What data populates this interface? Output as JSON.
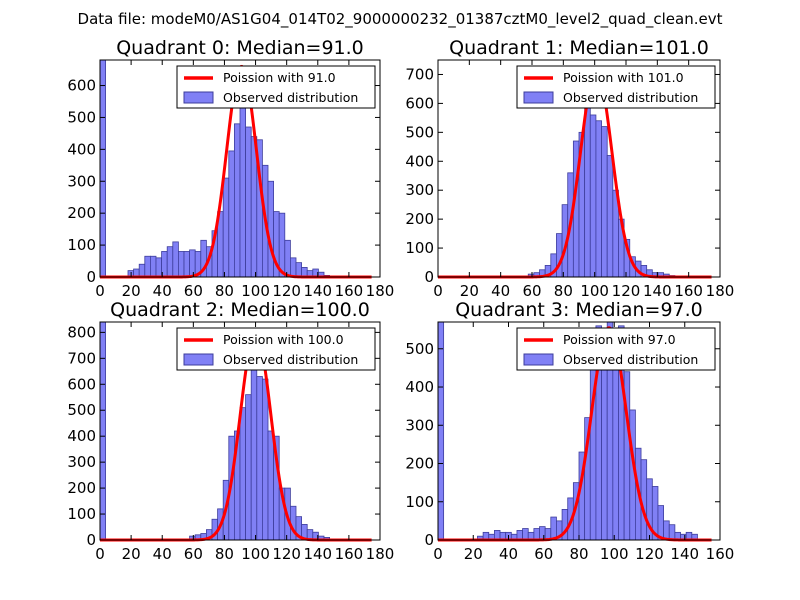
{
  "figure_title": "Data file: modeM0/AS1G04_014T02_9000000232_01387cztM0_level2_quad_clean.evt",
  "colors": {
    "bar_fill": "#8080f5",
    "bar_edge": "#3d3d9c",
    "line": "#ff0000",
    "frame": "#000000",
    "legend_edge": "#000000"
  },
  "chart_data": [
    {
      "type": "bar",
      "title": "Quadrant 0: Median=91.0",
      "legend": [
        "Poission with 91.0",
        "Observed distribution"
      ],
      "legend_position": "top-right",
      "xlim": [
        0,
        180
      ],
      "ylim": [
        0,
        680
      ],
      "xticks": [
        "0",
        "20",
        "40",
        "60",
        "80",
        "100",
        "120",
        "140",
        "160",
        "180"
      ],
      "yticks": [
        "0",
        "100",
        "200",
        "300",
        "400",
        "500",
        "600"
      ],
      "bin_width": 3.6,
      "bins_start": [
        0,
        18,
        21.6,
        25.2,
        28.8,
        32.4,
        36,
        39.6,
        43.2,
        46.8,
        50.4,
        54,
        57.6,
        61.2,
        64.8,
        68.4,
        72,
        75.6,
        79.2,
        82.8,
        86.4,
        90,
        93.6,
        97.2,
        100.8,
        104.4,
        108,
        111.6,
        115.2,
        118.8,
        122.4,
        126,
        129.6,
        133.2,
        136.8,
        140.4,
        144
      ],
      "counts": [
        680,
        20,
        25,
        40,
        65,
        65,
        60,
        80,
        95,
        110,
        80,
        80,
        85,
        80,
        115,
        95,
        145,
        205,
        310,
        395,
        480,
        660,
        470,
        440,
        430,
        350,
        300,
        205,
        200,
        115,
        60,
        45,
        30,
        20,
        25,
        15,
        5
      ],
      "poisson": {
        "mean": 91.0,
        "peak": 660,
        "sigma": 9.5
      }
    },
    {
      "type": "bar",
      "title": "Quadrant 1: Median=101.0",
      "legend": [
        "Poission with 101.0",
        "Observed distribution"
      ],
      "legend_position": "top-right",
      "xlim": [
        0,
        180
      ],
      "ylim": [
        0,
        750
      ],
      "xticks": [
        "0",
        "20",
        "40",
        "60",
        "80",
        "100",
        "120",
        "140",
        "160",
        "180"
      ],
      "yticks": [
        "0",
        "100",
        "200",
        "300",
        "400",
        "500",
        "600",
        "700"
      ],
      "bin_width": 3.6,
      "bins_start": [
        57.6,
        61.2,
        64.8,
        68.4,
        72,
        75.6,
        79.2,
        82.8,
        86.4,
        90,
        93.6,
        97.2,
        100.8,
        104.4,
        108,
        111.6,
        115.2,
        118.8,
        122.4,
        126,
        129.6,
        133.2,
        136.8,
        140.4,
        144,
        147.6
      ],
      "counts": [
        10,
        15,
        25,
        40,
        80,
        150,
        250,
        360,
        470,
        500,
        720,
        560,
        540,
        520,
        420,
        300,
        200,
        130,
        70,
        55,
        40,
        25,
        15,
        15,
        10,
        5
      ],
      "poisson": {
        "mean": 101.0,
        "peak": 715,
        "sigma": 10.0
      }
    },
    {
      "type": "bar",
      "title": "Quadrant 2: Median=100.0",
      "legend": [
        "Poission with 100.0",
        "Observed distribution"
      ],
      "legend_position": "top-right",
      "xlim": [
        0,
        180
      ],
      "ylim": [
        0,
        840
      ],
      "xticks": [
        "0",
        "20",
        "40",
        "60",
        "80",
        "100",
        "120",
        "140",
        "160",
        "180"
      ],
      "yticks": [
        "0",
        "100",
        "200",
        "300",
        "400",
        "500",
        "600",
        "700",
        "800"
      ],
      "bin_width": 3.6,
      "bins_start": [
        0,
        57.6,
        61.2,
        64.8,
        68.4,
        72,
        75.6,
        79.2,
        82.8,
        86.4,
        90,
        93.6,
        97.2,
        100.8,
        104.4,
        108,
        111.6,
        115.2,
        118.8,
        122.4,
        126,
        129.6,
        133.2,
        136.8,
        140.4,
        144
      ],
      "counts": [
        840,
        15,
        20,
        25,
        40,
        80,
        120,
        230,
        400,
        420,
        510,
        560,
        810,
        630,
        620,
        420,
        400,
        200,
        200,
        130,
        90,
        60,
        40,
        30,
        15,
        10
      ],
      "poisson": {
        "mean": 100.0,
        "peak": 800,
        "sigma": 9.8
      }
    },
    {
      "type": "bar",
      "title": "Quadrant 3: Median=97.0",
      "legend": [
        "Poission with 97.0",
        "Observed distribution"
      ],
      "legend_position": "top-right",
      "xlim": [
        0,
        160
      ],
      "ylim": [
        0,
        570
      ],
      "xticks": [
        "0",
        "20",
        "40",
        "60",
        "80",
        "100",
        "120",
        "140",
        "160"
      ],
      "yticks": [
        "0",
        "100",
        "200",
        "300",
        "400",
        "500"
      ],
      "bin_width": 3.2,
      "bins_start": [
        0,
        22.4,
        25.6,
        28.8,
        32,
        35.2,
        38.4,
        41.6,
        44.8,
        48,
        51.2,
        54.4,
        57.6,
        60.8,
        64,
        67.2,
        70.4,
        73.6,
        76.8,
        80,
        83.2,
        86.4,
        89.6,
        92.8,
        96,
        99.2,
        102.4,
        105.6,
        108.8,
        112,
        115.2,
        118.4,
        121.6,
        124.8,
        128,
        131.2,
        134.4,
        137.6,
        140.8,
        144
      ],
      "counts": [
        570,
        10,
        20,
        15,
        25,
        20,
        20,
        15,
        25,
        30,
        20,
        30,
        35,
        30,
        60,
        50,
        80,
        110,
        150,
        230,
        320,
        520,
        560,
        540,
        580,
        480,
        560,
        440,
        340,
        240,
        210,
        160,
        140,
        90,
        50,
        40,
        20,
        15,
        20,
        15
      ],
      "poisson": {
        "mean": 97.0,
        "peak": 555,
        "sigma": 9.8
      }
    }
  ]
}
